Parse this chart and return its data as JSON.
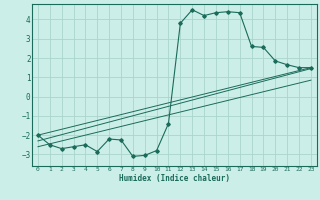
{
  "xlabel": "Humidex (Indice chaleur)",
  "bg_color": "#cceee8",
  "grid_color": "#aad4cc",
  "line_color": "#1a6b5a",
  "xlim": [
    -0.5,
    23.5
  ],
  "ylim": [
    -3.6,
    4.8
  ],
  "xticks": [
    0,
    1,
    2,
    3,
    4,
    5,
    6,
    7,
    8,
    9,
    10,
    11,
    12,
    13,
    14,
    15,
    16,
    17,
    18,
    19,
    20,
    21,
    22,
    23
  ],
  "yticks": [
    -3,
    -2,
    -1,
    0,
    1,
    2,
    3,
    4
  ],
  "curve1_x": [
    0,
    1,
    2,
    3,
    4,
    5,
    6,
    7,
    8,
    9,
    10,
    11,
    12,
    13,
    14,
    15,
    16,
    17,
    18,
    19,
    20,
    21,
    22,
    23
  ],
  "curve1_y": [
    -2.0,
    -2.5,
    -2.7,
    -2.6,
    -2.5,
    -2.85,
    -2.2,
    -2.25,
    -3.1,
    -3.05,
    -2.8,
    -1.4,
    3.8,
    4.5,
    4.2,
    4.35,
    4.4,
    4.35,
    2.6,
    2.55,
    1.85,
    1.65,
    1.5,
    1.5
  ],
  "line1_x": [
    0,
    23
  ],
  "line1_y": [
    -2.0,
    1.5
  ],
  "line2_x": [
    0,
    23
  ],
  "line2_y": [
    -2.3,
    1.45
  ],
  "line3_x": [
    0,
    23
  ],
  "line3_y": [
    -2.6,
    0.85
  ]
}
